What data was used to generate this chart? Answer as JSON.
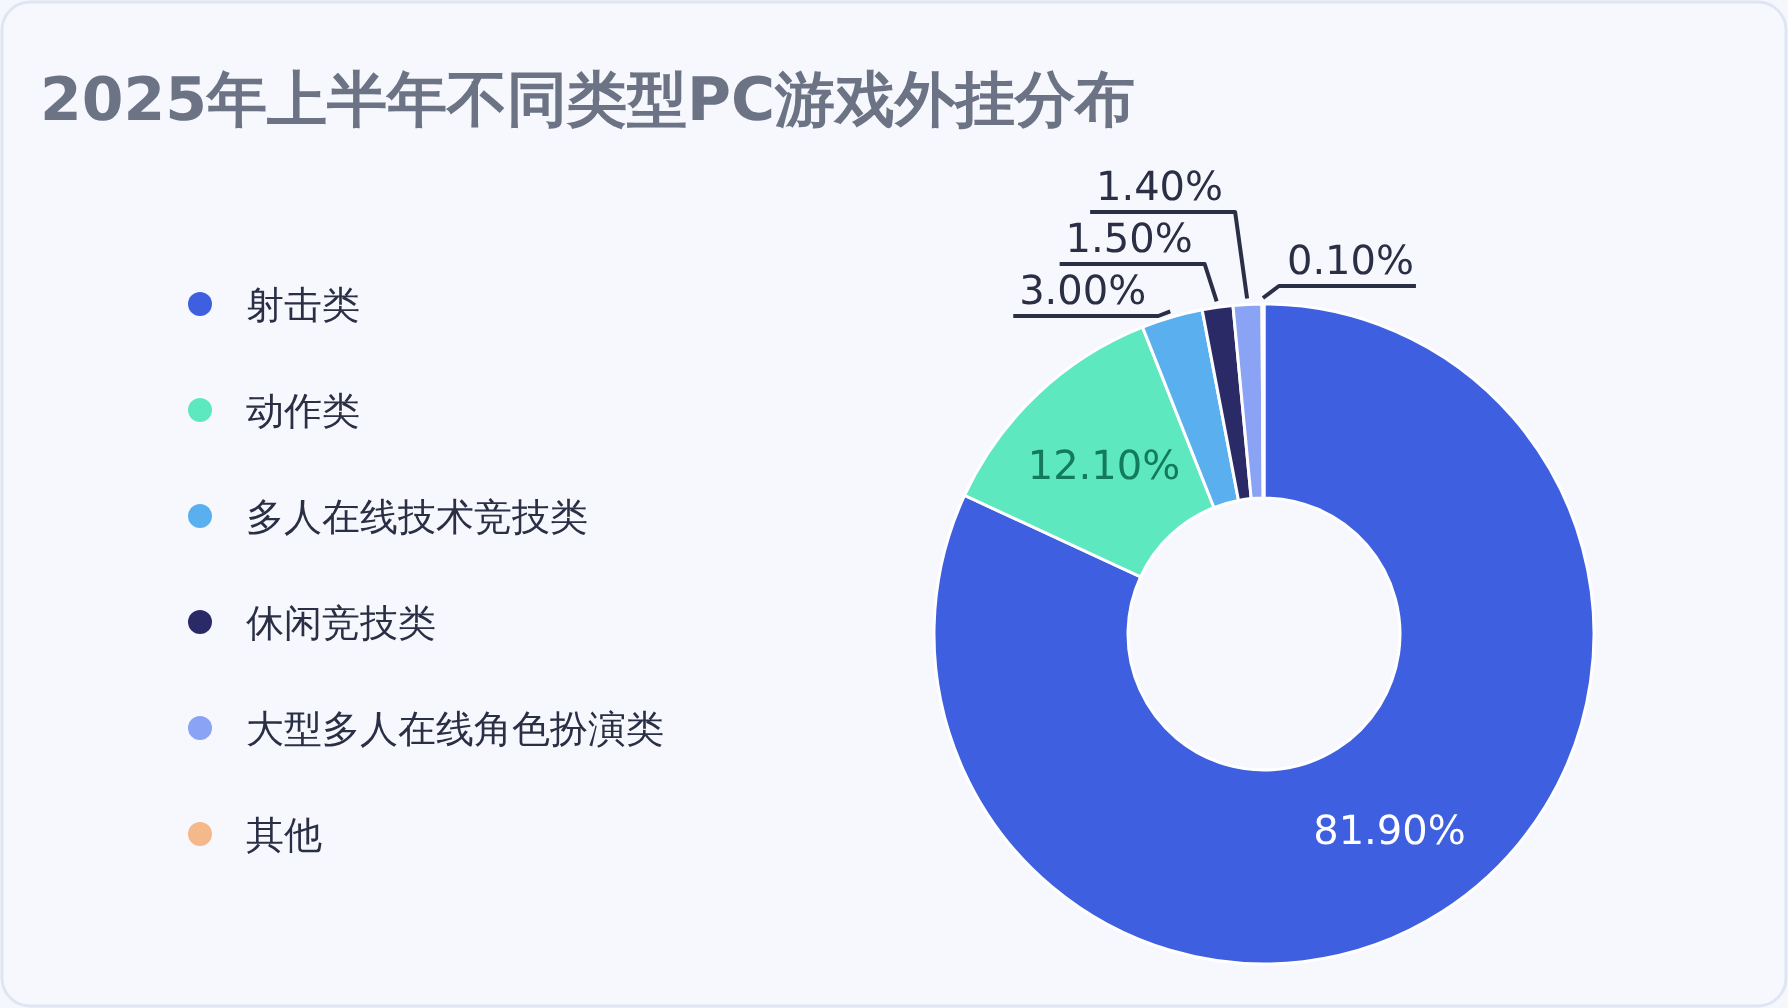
{
  "chart_data": {
    "type": "donut",
    "title": "2025年上半年不同类型PC游戏外挂分布",
    "categories": [
      "射击类",
      "动作类",
      "多人在线技术竞技类",
      "休闲竞技类",
      "大型多人在线角色扮演类",
      "其他"
    ],
    "values": [
      81.9,
      12.1,
      3,
      1.5,
      1.4,
      0.1
    ],
    "colors": [
      "#3d5fe0",
      "#5ee8bf",
      "#5aafee",
      "#2a2a66",
      "#8ba3f5",
      "#f5b88a"
    ],
    "value_labels": [
      "81.90%",
      "12.10%",
      "3.00%",
      "1.50%",
      "1.40%",
      "0.10%"
    ],
    "legend": "left"
  }
}
